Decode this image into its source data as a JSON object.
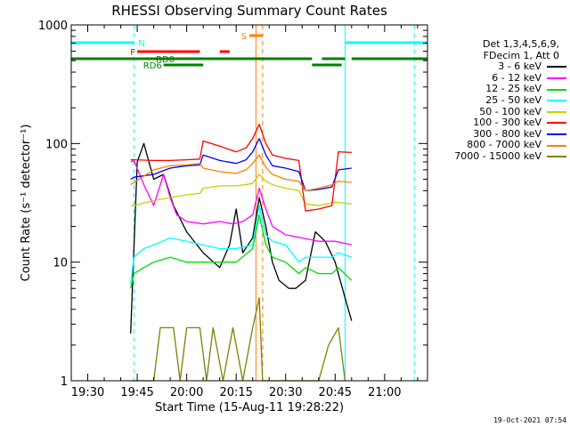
{
  "chart_data": {
    "type": "line",
    "title": "RHESSI Observing Summary Count Rates",
    "xlabel": "Start Time (15-Aug-11 19:28:22)",
    "ylabel": "Count Rate (s⁻¹ detector⁻¹)",
    "yscale": "log",
    "xlim": [
      "19:25",
      "21:13"
    ],
    "ylim": [
      1,
      1000
    ],
    "x_ticks": [
      "19:30",
      "19:45",
      "20:00",
      "20:15",
      "20:30",
      "20:45",
      "21:00"
    ],
    "y_ticks": [
      "1",
      "10",
      "100",
      "1000"
    ],
    "legend": {
      "header": [
        "Det 1,3,4,5,6,9,",
        "FDecim 1, Att 0"
      ],
      "position": "right"
    },
    "series": [
      {
        "name": "3 - 6 keV",
        "color": "#000000",
        "x": [
          "19:43",
          "19:45",
          "19:47",
          "19:50",
          "19:53",
          "19:56",
          "20:00",
          "20:05",
          "20:10",
          "20:13",
          "20:15",
          "20:17",
          "20:20",
          "20:22",
          "20:24",
          "20:26",
          "20:28",
          "20:31",
          "20:33",
          "20:36",
          "20:39",
          "20:42",
          "20:45",
          "20:48",
          "20:50"
        ],
        "y": [
          2.5,
          70,
          100,
          50,
          55,
          30,
          18,
          12,
          9,
          14,
          28,
          12,
          16,
          35,
          20,
          10,
          7,
          6,
          6,
          7,
          18,
          15,
          10,
          5,
          3.2
        ]
      },
      {
        "name": "6 - 12 keV",
        "color": "#ff00ff",
        "x": [
          "19:43",
          "19:44",
          "19:47",
          "19:50",
          "19:53",
          "19:55",
          "19:57",
          "20:00",
          "20:05",
          "20:10",
          "20:14",
          "20:17",
          "20:20",
          "20:22",
          "20:24",
          "20:26",
          "20:30",
          "20:35",
          "20:40",
          "20:45",
          "20:50"
        ],
        "y": [
          70,
          72,
          45,
          30,
          55,
          35,
          25,
          22,
          21,
          22,
          21,
          22,
          25,
          42,
          28,
          20,
          17,
          16,
          15,
          15,
          14
        ]
      },
      {
        "name": "12 - 25 keV",
        "color": "#00dd00",
        "x": [
          "19:43",
          "19:44",
          "19:47",
          "19:50",
          "19:55",
          "20:00",
          "20:05",
          "20:10",
          "20:15",
          "20:20",
          "20:22",
          "20:24",
          "20:26",
          "20:30",
          "20:34",
          "20:36",
          "20:40",
          "20:44",
          "20:46",
          "20:50"
        ],
        "y": [
          6,
          8,
          9,
          10,
          11,
          10,
          10,
          10,
          10,
          13,
          25,
          14,
          11,
          10,
          8,
          9,
          8,
          8,
          9,
          7
        ]
      },
      {
        "name": "25 - 50 keV",
        "color": "#00ffff",
        "x": [
          "19:43",
          "19:44",
          "19:47",
          "19:50",
          "19:55",
          "20:00",
          "20:05",
          "20:10",
          "20:15",
          "20:20",
          "20:22",
          "20:24",
          "20:26",
          "20:30",
          "20:34",
          "20:36",
          "20:40",
          "20:44",
          "20:46",
          "20:50"
        ],
        "y": [
          6.5,
          11,
          13,
          14,
          16,
          15,
          14,
          13,
          13,
          14,
          30,
          17,
          15,
          14,
          10,
          11,
          11,
          11,
          12,
          11
        ]
      },
      {
        "name": "50 - 100 keV",
        "color": "#cccc00",
        "x": [
          "19:43",
          "19:44",
          "19:50",
          "19:55",
          "20:00",
          "20:04",
          "20:05",
          "20:10",
          "20:15",
          "20:20",
          "20:22",
          "20:24",
          "20:26",
          "20:30",
          "20:34",
          "20:36",
          "20:40",
          "20:45",
          "20:50"
        ],
        "y": [
          30,
          30,
          33,
          35,
          37,
          38,
          42,
          44,
          44,
          46,
          55,
          48,
          45,
          42,
          40,
          31,
          30,
          32,
          31
        ]
      },
      {
        "name": "100 - 300 keV",
        "color": "#ff0000",
        "x": [
          "19:43",
          "19:44",
          "19:50",
          "19:55",
          "20:00",
          "20:04",
          "20:05",
          "20:10",
          "20:15",
          "20:18",
          "20:20",
          "20:22",
          "20:24",
          "20:26",
          "20:30",
          "20:34",
          "20:36",
          "20:40",
          "20:44",
          "20:46",
          "20:50"
        ],
        "y": [
          73,
          73,
          72,
          72,
          73,
          74,
          105,
          95,
          85,
          92,
          110,
          145,
          100,
          80,
          75,
          72,
          27,
          28,
          30,
          85,
          84
        ]
      },
      {
        "name": "300 - 800 keV",
        "color": "#0000ff",
        "x": [
          "19:43",
          "19:44",
          "19:50",
          "19:55",
          "20:00",
          "20:04",
          "20:05",
          "20:10",
          "20:15",
          "20:18",
          "20:20",
          "20:22",
          "20:24",
          "20:26",
          "20:30",
          "20:34",
          "20:36",
          "20:40",
          "20:44",
          "20:46",
          "20:50"
        ],
        "y": [
          50,
          52,
          55,
          62,
          65,
          66,
          80,
          72,
          68,
          73,
          85,
          110,
          80,
          65,
          62,
          58,
          40,
          41,
          43,
          60,
          62
        ]
      },
      {
        "name": "800 - 7000 keV",
        "color": "#ff8000",
        "x": [
          "19:43",
          "19:44",
          "19:50",
          "19:55",
          "20:00",
          "20:04",
          "20:05",
          "20:10",
          "20:15",
          "20:18",
          "20:20",
          "20:22",
          "20:24",
          "20:26",
          "20:30",
          "20:34",
          "20:36",
          "20:40",
          "20:44",
          "20:46",
          "20:50"
        ],
        "y": [
          45,
          47,
          60,
          65,
          66,
          68,
          62,
          58,
          56,
          60,
          68,
          80,
          63,
          55,
          50,
          48,
          40,
          42,
          45,
          48,
          47
        ]
      },
      {
        "name": "7000 - 15000 keV",
        "color": "#808000",
        "x": [
          "19:43",
          "19:50",
          "19:52",
          "19:56",
          "19:58",
          "20:00",
          "20:04",
          "20:06",
          "20:08",
          "20:11",
          "20:14",
          "20:17",
          "20:20",
          "20:22",
          "20:23",
          "20:25",
          "20:40",
          "20:43",
          "20:46",
          "20:48"
        ],
        "y": [
          1,
          1,
          2.8,
          2.8,
          1,
          2.8,
          2.8,
          1,
          2.8,
          1,
          2.8,
          1,
          2.8,
          5,
          1,
          1,
          1,
          2,
          2.8,
          1
        ]
      }
    ],
    "state_bars": [
      {
        "label": "N",
        "color": "#00ffff",
        "spans": [
          [
            "19:25",
            "19:44"
          ],
          [
            "20:48",
            "21:13"
          ]
        ]
      },
      {
        "label": "F",
        "color": "#ff0000",
        "spans": [
          [
            "19:45",
            "20:04"
          ],
          [
            "20:10",
            "20:13"
          ]
        ]
      },
      {
        "label": "S",
        "color": "#ff8000",
        "spans": [
          [
            "20:19",
            "20:23"
          ]
        ]
      },
      {
        "label": "RD0",
        "color": "#008000",
        "spans": [
          [
            "19:25",
            "20:38"
          ],
          [
            "20:41",
            "20:48"
          ],
          [
            "20:50",
            "21:13"
          ]
        ]
      },
      {
        "label": "RD6",
        "color": "#008000",
        "spans": [
          [
            "19:53",
            "20:05"
          ],
          [
            "20:38",
            "20:47"
          ]
        ]
      }
    ],
    "vlines": [
      {
        "color": "#00ffff",
        "style": "solid",
        "x": "19:25"
      },
      {
        "color": "#00ffff",
        "style": "dashed",
        "x": "19:44"
      },
      {
        "color": "#00ffff",
        "style": "solid",
        "x": "20:48"
      },
      {
        "color": "#00ffff",
        "style": "dashed",
        "x": "21:09"
      },
      {
        "color": "#ff8000",
        "style": "solid",
        "x": "20:21"
      },
      {
        "color": "#ff8000",
        "style": "dashed",
        "x": "20:23"
      }
    ]
  },
  "timestamp": "19-Oct-2021 07:54"
}
